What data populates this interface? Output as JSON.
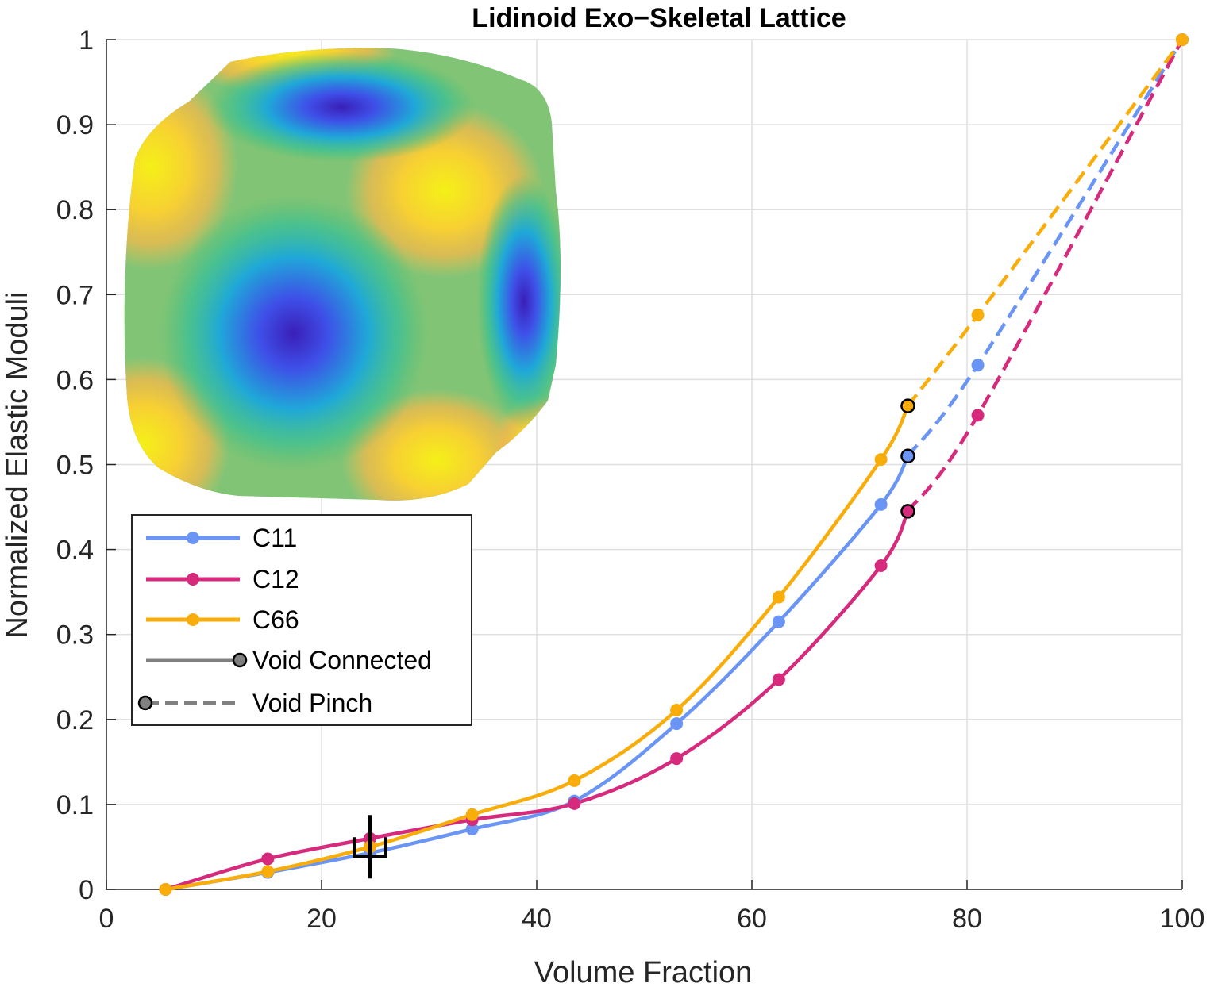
{
  "chart_data": {
    "type": "line",
    "title": "Lidinoid Exo−Skeletal Lattice",
    "xlabel": "Volume Fraction",
    "ylabel": "Normalized Elastic Moduli",
    "xlim": [
      0,
      100
    ],
    "ylim": [
      0,
      1
    ],
    "xticks": [
      "0",
      "20",
      "40",
      "60",
      "80",
      "100"
    ],
    "yticks": [
      "0",
      "0.1",
      "0.2",
      "0.3",
      "0.4",
      "0.5",
      "0.6",
      "0.7",
      "0.8",
      "0.9",
      "1"
    ],
    "grid": true,
    "legend_position": "left, below inset image",
    "series": [
      {
        "name": "C11",
        "color": "#6b95f5",
        "connected": {
          "x": [
            5.5,
            15,
            24.5,
            34,
            43.5,
            53,
            62.5,
            72,
            74.5
          ],
          "y": [
            0,
            0.02,
            0.043,
            0.071,
            0.104,
            0.195,
            0.315,
            0.453,
            0.51
          ]
        },
        "pinch": {
          "x": [
            74.5,
            81,
            100
          ],
          "y": [
            0.51,
            0.617,
            1.0
          ]
        }
      },
      {
        "name": "C12",
        "color": "#d62a7d",
        "connected": {
          "x": [
            5.5,
            15,
            24.5,
            34,
            43.5,
            53,
            62.5,
            72,
            74.5
          ],
          "y": [
            0,
            0.036,
            0.06,
            0.082,
            0.101,
            0.154,
            0.247,
            0.381,
            0.445
          ]
        },
        "pinch": {
          "x": [
            74.5,
            81,
            100
          ],
          "y": [
            0.445,
            0.558,
            1.0
          ]
        }
      },
      {
        "name": "C66",
        "color": "#f9ad0a",
        "connected": {
          "x": [
            5.5,
            15,
            24.5,
            34,
            43.5,
            53,
            62.5,
            72,
            74.5
          ],
          "y": [
            0,
            0.021,
            0.05,
            0.088,
            0.128,
            0.211,
            0.344,
            0.506,
            0.569
          ]
        },
        "pinch": {
          "x": [
            74.5,
            81,
            100
          ],
          "y": [
            0.569,
            0.676,
            1.0
          ]
        }
      }
    ],
    "legend_styles": [
      {
        "name": "Void Connected",
        "color": "#808080",
        "style": "solid"
      },
      {
        "name": "Void Pinch",
        "color": "#808080",
        "style": "dashed"
      }
    ],
    "marker": {
      "x": 24.5,
      "y": 0.052
    }
  }
}
